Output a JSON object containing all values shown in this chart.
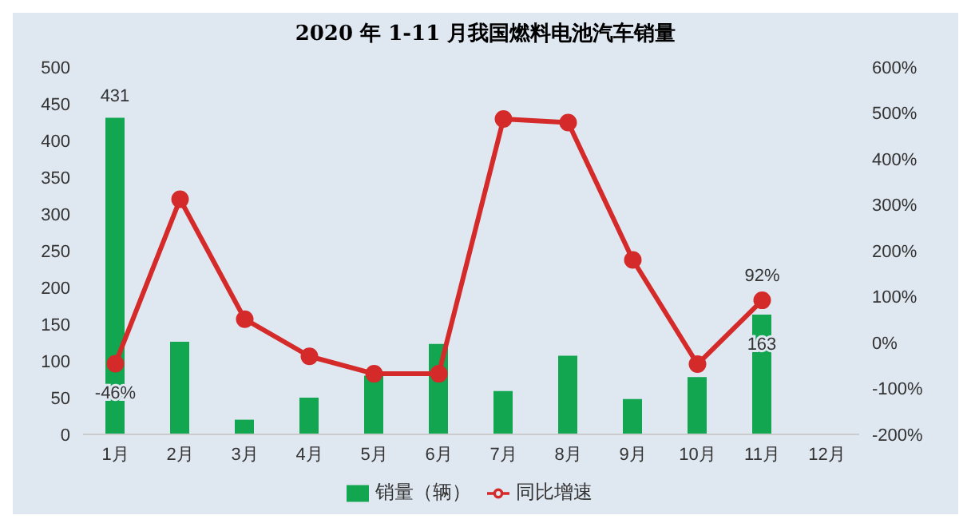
{
  "chart_data": {
    "type": "bar",
    "title": "2020 年 1-11 月我国燃料电池汽车销量",
    "categories": [
      "1月",
      "2月",
      "3月",
      "4月",
      "5月",
      "6月",
      "7月",
      "8月",
      "9月",
      "10月",
      "11月",
      "12月"
    ],
    "series": [
      {
        "name": "销量（辆）",
        "color": "#12a650",
        "values": [
          431,
          126,
          20,
          50,
          80,
          123,
          59,
          107,
          48,
          78,
          163,
          null
        ],
        "value_labels": [
          "431",
          null,
          null,
          null,
          null,
          null,
          null,
          null,
          null,
          null,
          "163",
          null
        ]
      },
      {
        "name": "同比增速",
        "type": "line",
        "axis": "y2",
        "color": "#d42a2a",
        "marker": "circle",
        "values": [
          -46,
          312,
          51,
          -30,
          -68,
          -68,
          487,
          479,
          180,
          -47,
          92,
          null
        ],
        "value_labels": [
          "-46%",
          null,
          null,
          null,
          null,
          null,
          null,
          null,
          null,
          null,
          "92%",
          null
        ]
      }
    ],
    "ylim": [
      0,
      500
    ],
    "yticks": [
      0,
      50,
      100,
      150,
      200,
      250,
      300,
      350,
      400,
      450,
      500
    ],
    "y2lim": [
      -200,
      600
    ],
    "y2ticks": [
      {
        "value": -200,
        "label": "-200%"
      },
      {
        "value": -100,
        "label": "-100%"
      },
      {
        "value": 0,
        "label": "0%"
      },
      {
        "value": 100,
        "label": "100%"
      },
      {
        "value": 200,
        "label": "200%"
      },
      {
        "value": 300,
        "label": "300%"
      },
      {
        "value": 400,
        "label": "400%"
      },
      {
        "value": 500,
        "label": "500%"
      },
      {
        "value": 600,
        "label": "600%"
      }
    ],
    "grid": false,
    "legend": "bottom"
  }
}
